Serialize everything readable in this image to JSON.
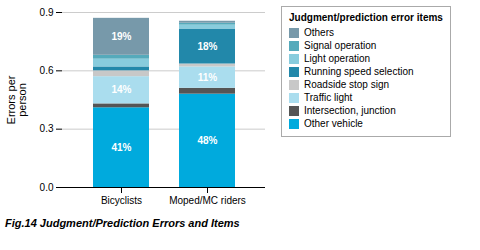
{
  "chart_data": {
    "type": "bar",
    "stacked": true,
    "title": "Fig.14  Judgment/Prediction Errors and Items",
    "ylabel": "Errors per\nperson",
    "legend_title": "Judgment/prediction error items",
    "categories": [
      "Bicyclists",
      "Moped/MC riders"
    ],
    "series": [
      {
        "name": "Other vehicle",
        "color": "#00AADD",
        "values": [
          0.41,
          0.48
        ],
        "value_labels": [
          "41%",
          "48%"
        ]
      },
      {
        "name": "Intersection, junction",
        "color": "#555555",
        "values": [
          0.02,
          0.03
        ]
      },
      {
        "name": "Traffic light",
        "color": "#AADDEE",
        "values": [
          0.14,
          0.11
        ],
        "value_labels": [
          "14%",
          "11%"
        ]
      },
      {
        "name": "Roadside stop sign",
        "color": "#C8C8C8",
        "values": [
          0.03,
          0.015
        ]
      },
      {
        "name": "Running speed selection",
        "color": "#2288AA",
        "values": [
          0.02,
          0.18
        ],
        "value_labels": [
          null,
          "18%"
        ]
      },
      {
        "name": "Light operation",
        "color": "#88CCDD",
        "values": [
          0.04,
          0.02
        ]
      },
      {
        "name": "Signal operation",
        "color": "#55AABB",
        "values": [
          0.02,
          0.01
        ]
      },
      {
        "name": "Others",
        "color": "#7799AA",
        "values": [
          0.19,
          0.01
        ],
        "value_labels": [
          "19%",
          null
        ]
      }
    ],
    "ylim": [
      0.0,
      0.9
    ],
    "yticks": [
      {
        "value": 0,
        "label": "0.0"
      },
      0.3,
      0.6,
      0.9
    ],
    "grid": true,
    "legend": "right",
    "data_labels": true
  }
}
